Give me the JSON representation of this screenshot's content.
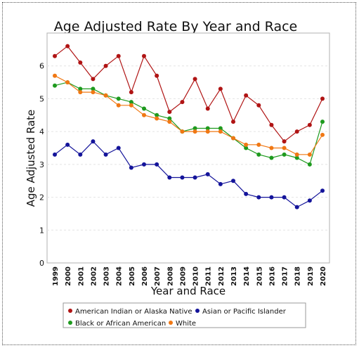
{
  "chart_data": {
    "type": "line",
    "title": "Age Adjusted Rate By Year and Race",
    "xlabel": "Year and Race",
    "ylabel": "Age Adjusted Rate",
    "categories": [
      "1999",
      "2000",
      "2001",
      "2002",
      "2003",
      "2004",
      "2005",
      "2006",
      "2007",
      "2008",
      "2009",
      "2010",
      "2011",
      "2012",
      "2013",
      "2014",
      "2015",
      "2016",
      "2017",
      "2018",
      "2019",
      "2020"
    ],
    "ylim": [
      0,
      7
    ],
    "yticks": [
      0,
      1,
      2,
      3,
      4,
      5,
      6
    ],
    "grid": true,
    "legend_position": "bottom",
    "series": [
      {
        "name": "American Indian or Alaska Native",
        "color": "#b01414",
        "values": [
          6.3,
          6.6,
          6.1,
          5.6,
          6.0,
          6.3,
          5.2,
          6.3,
          5.7,
          4.6,
          4.9,
          5.6,
          4.7,
          5.3,
          4.3,
          5.1,
          4.8,
          4.2,
          3.7,
          4.0,
          4.2,
          5.0
        ]
      },
      {
        "name": "Asian or Pacific Islander",
        "color": "#14149a",
        "values": [
          3.3,
          3.6,
          3.3,
          3.7,
          3.3,
          3.5,
          2.9,
          3.0,
          3.0,
          2.6,
          2.6,
          2.6,
          2.7,
          2.4,
          2.5,
          2.1,
          2.0,
          2.0,
          2.0,
          1.7,
          1.9,
          2.2
        ]
      },
      {
        "name": "Black or African American",
        "color": "#1e9a1e",
        "values": [
          5.4,
          5.5,
          5.3,
          5.3,
          5.1,
          5.0,
          4.9,
          4.7,
          4.5,
          4.4,
          4.0,
          4.1,
          4.1,
          4.1,
          3.8,
          3.5,
          3.3,
          3.2,
          3.3,
          3.2,
          3.0,
          4.3
        ]
      },
      {
        "name": "White",
        "color": "#f07814",
        "values": [
          5.7,
          5.5,
          5.2,
          5.2,
          5.1,
          4.8,
          4.8,
          4.5,
          4.4,
          4.3,
          4.0,
          4.0,
          4.0,
          4.0,
          3.8,
          3.6,
          3.6,
          3.5,
          3.5,
          3.3,
          3.3,
          3.9
        ]
      }
    ]
  }
}
